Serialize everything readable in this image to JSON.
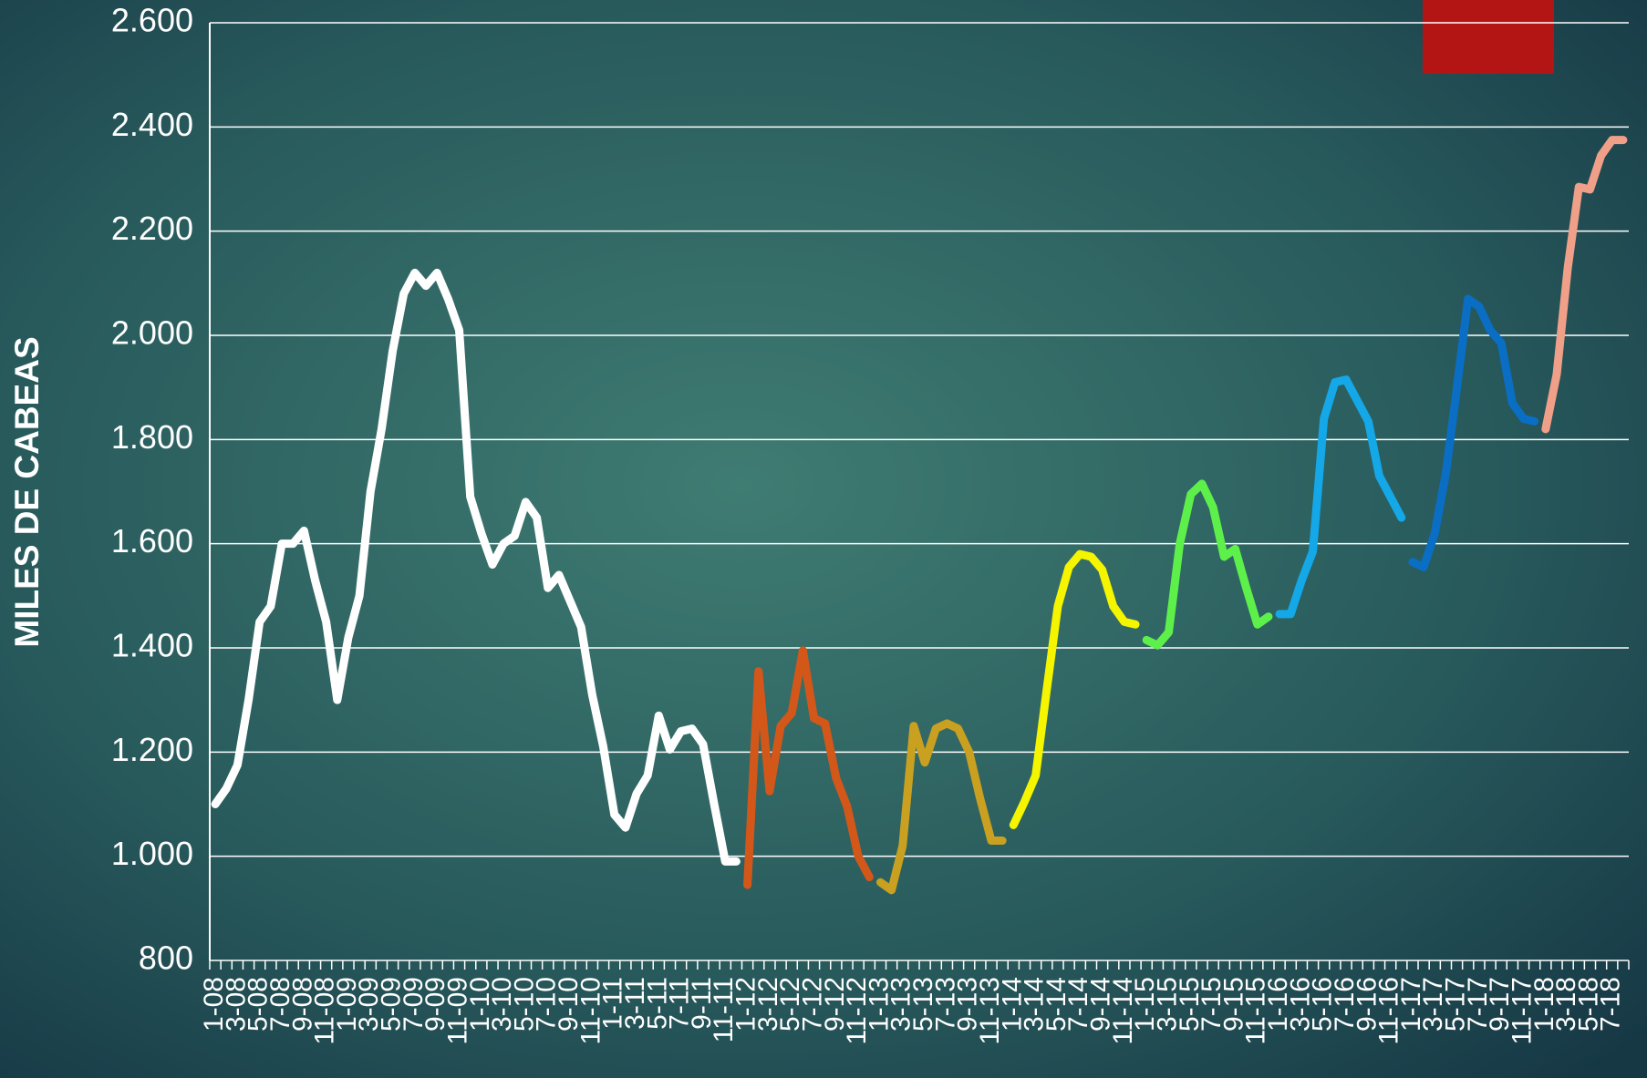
{
  "chart_data": {
    "type": "line",
    "y_label": "MILES DE CABEAS",
    "categories": [
      "1-08",
      null,
      "3-08",
      null,
      "5-08",
      null,
      "7-08",
      null,
      "9-08",
      null,
      "11-08",
      null,
      "1-09",
      null,
      "3-09",
      null,
      "5-09",
      null,
      "7-09",
      null,
      "9-09",
      null,
      "11-09",
      null,
      "1-10",
      null,
      "3-10",
      null,
      "5-10",
      null,
      "7-10",
      null,
      "9-10",
      null,
      "11-10",
      null,
      "1-11",
      null,
      "3-11",
      null,
      "5-11",
      null,
      "7-11",
      null,
      "9-11",
      null,
      "11-11",
      null,
      "1-12",
      null,
      "3-12",
      null,
      "5-12",
      null,
      "7-12",
      null,
      "9-12",
      null,
      "11-12",
      null,
      "1-13",
      null,
      "3-13",
      null,
      "5-13",
      null,
      "7-13",
      null,
      "9-13",
      null,
      "11-13",
      null,
      "1-14",
      null,
      "3-14",
      null,
      "5-14",
      null,
      "7-14",
      null,
      "9-14",
      null,
      "11-14",
      null,
      "1-15",
      null,
      "3-15",
      null,
      "5-15",
      null,
      "7-15",
      null,
      "9-15",
      null,
      "11-15",
      null,
      "1-16",
      null,
      "3-16",
      null,
      "5-16",
      null,
      "7-16",
      null,
      "9-16",
      null,
      "11-16",
      null,
      "1-17",
      null,
      "3-17",
      null,
      "5-17",
      null,
      "7-17",
      null,
      "9-17",
      null,
      "11-17",
      null,
      "1-18",
      null,
      "3-18",
      null,
      "5-18",
      null,
      "7-18",
      null
    ],
    "series": [
      {
        "color": "#ffffff",
        "values": [
          1100,
          1130,
          1175,
          1300,
          1450,
          1480,
          1600,
          1600,
          1625,
          1530,
          1450,
          1300,
          1420,
          1500,
          1700,
          1820,
          1970,
          2080,
          2120,
          2095,
          2120,
          2070,
          2010,
          1690,
          1620,
          1560,
          1600,
          1615,
          1680,
          1650,
          1515,
          1540,
          1490,
          1440,
          1310,
          1210,
          1080,
          1055,
          1120,
          1155,
          1270,
          1205,
          1240,
          1245,
          1215,
          1100,
          990,
          990,
          null,
          null,
          null,
          null,
          null,
          null,
          null,
          null,
          null,
          null,
          null,
          null,
          null,
          null,
          null,
          null,
          null,
          null,
          null,
          null,
          null,
          null,
          null,
          null,
          null,
          null,
          null,
          null,
          null,
          null,
          null,
          null,
          null,
          null,
          null,
          null,
          null,
          null,
          null,
          null,
          null,
          null,
          null,
          null,
          null,
          null,
          null,
          null,
          null,
          null,
          null,
          null,
          null,
          null,
          null,
          null,
          null,
          null,
          null,
          null,
          null,
          null,
          null,
          null,
          null,
          null,
          null,
          null,
          null,
          null,
          null,
          null,
          null,
          null,
          null,
          null,
          null,
          null,
          null,
          null
        ]
      },
      {
        "color": "#d4571a",
        "values": [
          null,
          null,
          null,
          null,
          null,
          null,
          null,
          null,
          null,
          null,
          null,
          null,
          null,
          null,
          null,
          null,
          null,
          null,
          null,
          null,
          null,
          null,
          null,
          null,
          null,
          null,
          null,
          null,
          null,
          null,
          null,
          null,
          null,
          null,
          null,
          null,
          null,
          null,
          null,
          null,
          null,
          null,
          null,
          null,
          null,
          null,
          null,
          null,
          945,
          1355,
          1125,
          1250,
          1275,
          1395,
          1265,
          1255,
          1150,
          1095,
          1000,
          960,
          null,
          null,
          null,
          null,
          null,
          null,
          null,
          null,
          null,
          null,
          null,
          null,
          null,
          null,
          null,
          null,
          null,
          null,
          null,
          null,
          null,
          null,
          null,
          null,
          null,
          null,
          null,
          null,
          null,
          null,
          null,
          null,
          null,
          null,
          null,
          null,
          null,
          null,
          null,
          null,
          null,
          null,
          null,
          null,
          null,
          null,
          null,
          null,
          null,
          null,
          null,
          null,
          null,
          null,
          null,
          null,
          null,
          null,
          null,
          null,
          null,
          null,
          null,
          null,
          null,
          null,
          null,
          null
        ]
      },
      {
        "color": "#c9a020",
        "values": [
          null,
          null,
          null,
          null,
          null,
          null,
          null,
          null,
          null,
          null,
          null,
          null,
          null,
          null,
          null,
          null,
          null,
          null,
          null,
          null,
          null,
          null,
          null,
          null,
          null,
          null,
          null,
          null,
          null,
          null,
          null,
          null,
          null,
          null,
          null,
          null,
          null,
          null,
          null,
          null,
          null,
          null,
          null,
          null,
          null,
          null,
          null,
          null,
          null,
          null,
          null,
          null,
          null,
          null,
          null,
          null,
          null,
          null,
          null,
          null,
          950,
          935,
          1020,
          1250,
          1180,
          1245,
          1255,
          1245,
          1200,
          1110,
          1030,
          1030,
          null,
          null,
          null,
          null,
          null,
          null,
          null,
          null,
          null,
          null,
          null,
          null,
          null,
          null,
          null,
          null,
          null,
          null,
          null,
          null,
          null,
          null,
          null,
          null,
          null,
          null,
          null,
          null,
          null,
          null,
          null,
          null,
          null,
          null,
          null,
          null,
          null,
          null,
          null,
          null,
          null,
          null,
          null,
          null,
          null,
          null,
          null,
          null,
          null,
          null,
          null,
          null,
          null,
          null,
          null,
          null
        ]
      },
      {
        "color": "#f5f500",
        "values": [
          null,
          null,
          null,
          null,
          null,
          null,
          null,
          null,
          null,
          null,
          null,
          null,
          null,
          null,
          null,
          null,
          null,
          null,
          null,
          null,
          null,
          null,
          null,
          null,
          null,
          null,
          null,
          null,
          null,
          null,
          null,
          null,
          null,
          null,
          null,
          null,
          null,
          null,
          null,
          null,
          null,
          null,
          null,
          null,
          null,
          null,
          null,
          null,
          null,
          null,
          null,
          null,
          null,
          null,
          null,
          null,
          null,
          null,
          null,
          null,
          null,
          null,
          null,
          null,
          null,
          null,
          null,
          null,
          null,
          null,
          null,
          null,
          1060,
          1105,
          1155,
          1320,
          1480,
          1555,
          1580,
          1575,
          1550,
          1480,
          1450,
          1445,
          null,
          null,
          null,
          null,
          null,
          null,
          null,
          null,
          null,
          null,
          null,
          null,
          null,
          null,
          null,
          null,
          null,
          null,
          null,
          null,
          null,
          null,
          null,
          null,
          null,
          null,
          null,
          null,
          null,
          null,
          null,
          null,
          null,
          null,
          null,
          null,
          null,
          null,
          null,
          null,
          null,
          null,
          null,
          null
        ]
      },
      {
        "color": "#5ef04a",
        "values": [
          null,
          null,
          null,
          null,
          null,
          null,
          null,
          null,
          null,
          null,
          null,
          null,
          null,
          null,
          null,
          null,
          null,
          null,
          null,
          null,
          null,
          null,
          null,
          null,
          null,
          null,
          null,
          null,
          null,
          null,
          null,
          null,
          null,
          null,
          null,
          null,
          null,
          null,
          null,
          null,
          null,
          null,
          null,
          null,
          null,
          null,
          null,
          null,
          null,
          null,
          null,
          null,
          null,
          null,
          null,
          null,
          null,
          null,
          null,
          null,
          null,
          null,
          null,
          null,
          null,
          null,
          null,
          null,
          null,
          null,
          null,
          null,
          null,
          null,
          null,
          null,
          null,
          null,
          null,
          null,
          null,
          null,
          null,
          null,
          1415,
          1405,
          1430,
          1600,
          1695,
          1715,
          1670,
          1575,
          1590,
          1515,
          1445,
          1460,
          null,
          null,
          null,
          null,
          null,
          null,
          null,
          null,
          null,
          null,
          null,
          null,
          null,
          null,
          null,
          null,
          null,
          null,
          null,
          null,
          null,
          null,
          null,
          null,
          null,
          null,
          null,
          null,
          null,
          null,
          null,
          null
        ]
      },
      {
        "color": "#14a8e8",
        "values": [
          null,
          null,
          null,
          null,
          null,
          null,
          null,
          null,
          null,
          null,
          null,
          null,
          null,
          null,
          null,
          null,
          null,
          null,
          null,
          null,
          null,
          null,
          null,
          null,
          null,
          null,
          null,
          null,
          null,
          null,
          null,
          null,
          null,
          null,
          null,
          null,
          null,
          null,
          null,
          null,
          null,
          null,
          null,
          null,
          null,
          null,
          null,
          null,
          null,
          null,
          null,
          null,
          null,
          null,
          null,
          null,
          null,
          null,
          null,
          null,
          null,
          null,
          null,
          null,
          null,
          null,
          null,
          null,
          null,
          null,
          null,
          null,
          null,
          null,
          null,
          null,
          null,
          null,
          null,
          null,
          null,
          null,
          null,
          null,
          null,
          null,
          null,
          null,
          null,
          null,
          null,
          null,
          null,
          null,
          null,
          null,
          1465,
          1465,
          1530,
          1585,
          1840,
          1910,
          1915,
          1875,
          1835,
          1730,
          1690,
          1650,
          null,
          null,
          null,
          null,
          null,
          null,
          null,
          null,
          null,
          null,
          null,
          null,
          null,
          null,
          null,
          null,
          null,
          null,
          null,
          null
        ]
      },
      {
        "color": "#0a6ec4",
        "values": [
          null,
          null,
          null,
          null,
          null,
          null,
          null,
          null,
          null,
          null,
          null,
          null,
          null,
          null,
          null,
          null,
          null,
          null,
          null,
          null,
          null,
          null,
          null,
          null,
          null,
          null,
          null,
          null,
          null,
          null,
          null,
          null,
          null,
          null,
          null,
          null,
          null,
          null,
          null,
          null,
          null,
          null,
          null,
          null,
          null,
          null,
          null,
          null,
          null,
          null,
          null,
          null,
          null,
          null,
          null,
          null,
          null,
          null,
          null,
          null,
          null,
          null,
          null,
          null,
          null,
          null,
          null,
          null,
          null,
          null,
          null,
          null,
          null,
          null,
          null,
          null,
          null,
          null,
          null,
          null,
          null,
          null,
          null,
          null,
          null,
          null,
          null,
          null,
          null,
          null,
          null,
          null,
          null,
          null,
          null,
          null,
          null,
          null,
          null,
          null,
          null,
          null,
          null,
          null,
          null,
          null,
          null,
          null,
          1565,
          1555,
          1620,
          1735,
          1900,
          2070,
          2055,
          2010,
          1985,
          1870,
          1840,
          1835,
          null,
          null,
          null,
          null,
          null,
          null,
          null,
          null
        ]
      },
      {
        "color": "#f0a088",
        "values": [
          null,
          null,
          null,
          null,
          null,
          null,
          null,
          null,
          null,
          null,
          null,
          null,
          null,
          null,
          null,
          null,
          null,
          null,
          null,
          null,
          null,
          null,
          null,
          null,
          null,
          null,
          null,
          null,
          null,
          null,
          null,
          null,
          null,
          null,
          null,
          null,
          null,
          null,
          null,
          null,
          null,
          null,
          null,
          null,
          null,
          null,
          null,
          null,
          null,
          null,
          null,
          null,
          null,
          null,
          null,
          null,
          null,
          null,
          null,
          null,
          null,
          null,
          null,
          null,
          null,
          null,
          null,
          null,
          null,
          null,
          null,
          null,
          null,
          null,
          null,
          null,
          null,
          null,
          null,
          null,
          null,
          null,
          null,
          null,
          null,
          null,
          null,
          null,
          null,
          null,
          null,
          null,
          null,
          null,
          null,
          null,
          null,
          null,
          null,
          null,
          null,
          null,
          null,
          null,
          null,
          null,
          null,
          null,
          null,
          null,
          null,
          null,
          null,
          null,
          null,
          null,
          null,
          null,
          null,
          null,
          1820,
          1925,
          2130,
          2285,
          2280,
          2345,
          2375,
          2375
        ]
      }
    ],
    "ylim": [
      800,
      2600
    ],
    "yticks": [
      800,
      {
        "value": 1000,
        "label": "1.000"
      },
      {
        "value": 1200,
        "label": "1.200"
      },
      {
        "value": 1400,
        "label": "1.400"
      },
      {
        "value": 1600,
        "label": "1.600"
      },
      {
        "value": 1800,
        "label": "1.800"
      },
      {
        "value": 2000,
        "label": "2.000"
      },
      {
        "value": 2200,
        "label": "2.200"
      },
      {
        "value": 2400,
        "label": "2.400"
      },
      {
        "value": 2600,
        "label": "2.600"
      }
    ],
    "grid": true
  }
}
